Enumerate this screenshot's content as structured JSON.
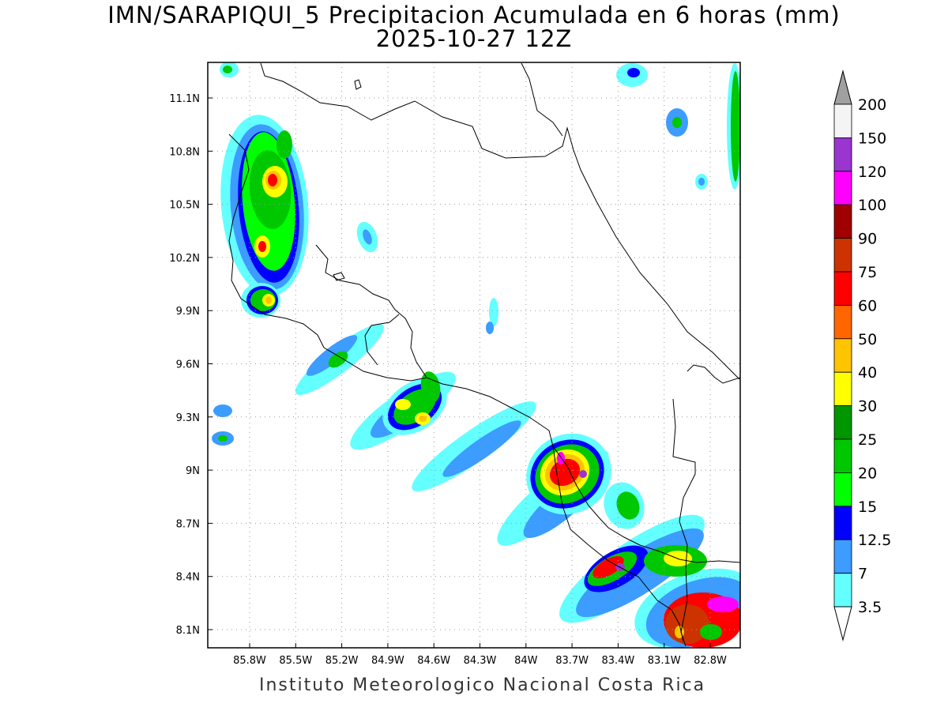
{
  "title": {
    "line1": "IMN/SARAPIQUI_5 Precipitacion Acumulada en 6 horas (mm)",
    "line2": "2025-10-27 12Z"
  },
  "footer": "Instituto Meteorologico Nacional Costa Rica",
  "map": {
    "lon_range": [
      -86.0,
      -82.6
    ],
    "lat_range": [
      8.0,
      11.3
    ],
    "grid": true,
    "lon_ticks": [
      "85.8W",
      "85.5W",
      "85.2W",
      "84.9W",
      "84.6W",
      "84.3W",
      "84W",
      "83.7W",
      "83.4W",
      "83.1W",
      "82.8W"
    ],
    "lat_ticks": [
      "11.1N",
      "10.8N",
      "10.5N",
      "10.2N",
      "9.9N",
      "9.6N",
      "9.3N",
      "9N",
      "8.7N",
      "8.4N",
      "8.1N"
    ]
  },
  "colorbar": {
    "labels": [
      "200",
      "150",
      "120",
      "100",
      "90",
      "75",
      "60",
      "50",
      "40",
      "30",
      "25",
      "20",
      "15",
      "12.5",
      "7",
      "3.5"
    ],
    "colors": [
      "#a0a0a0",
      "#f4f4f4",
      "#9a35d0",
      "#ff00ff",
      "#a00000",
      "#cc3300",
      "#ff0000",
      "#ff6600",
      "#ffc400",
      "#ffff00",
      "#009600",
      "#00c800",
      "#00ff00",
      "#0000ff",
      "#3c9cff",
      "#64ffff"
    ]
  }
}
